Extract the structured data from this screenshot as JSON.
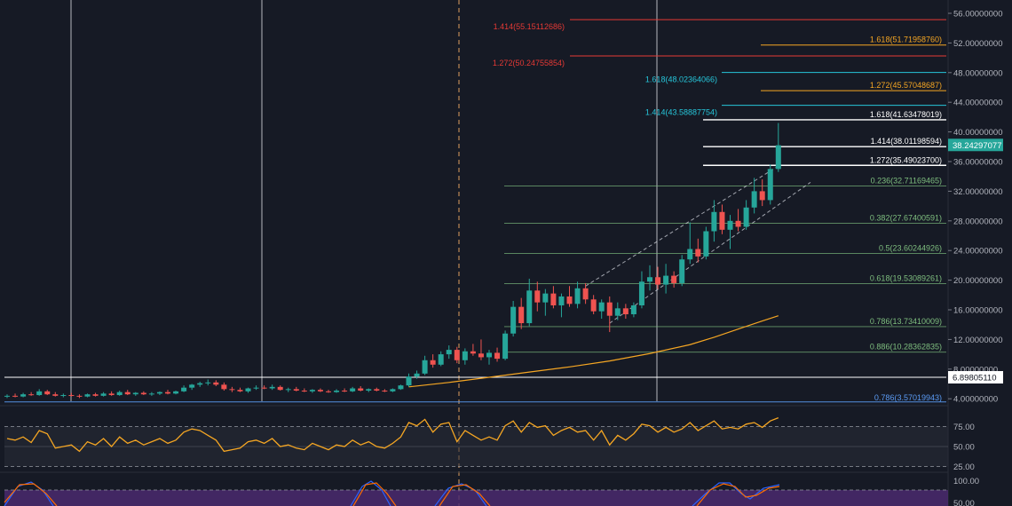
{
  "colors": {
    "background": "#161a25",
    "grid": "#262a35",
    "up": "#26a69a",
    "down": "#ef5350",
    "ma": "#f5a623",
    "rsi": "#f5a623",
    "stoch_k": "#2962ff",
    "stoch_d": "#ff6d00",
    "fib": "#7fbf7f",
    "red_level": "#e53935",
    "orange_level": "#f5a623",
    "cyan_level": "#26c6da",
    "white_level": "#ffffff",
    "blue_level": "#5b9cf6"
  },
  "price_axis": {
    "labels": [
      "56.00000000",
      "52.00000000",
      "48.00000000",
      "44.00000000",
      "40.00000000",
      "36.00000000",
      "32.00000000",
      "28.00000000",
      "24.00000000",
      "20.00000000",
      "16.00000000",
      "12.00000000",
      "8.00000000",
      "4.00000000"
    ],
    "values": [
      56,
      52,
      48,
      44,
      40,
      36,
      32,
      28,
      24,
      20,
      16,
      12,
      8,
      4
    ],
    "current_price_tag": "38.24297077",
    "current_price": 38.24297077,
    "support_tag": "6.89805110",
    "support_price": 6.8980511
  },
  "rsi_axis": {
    "labels": [
      "75.00",
      "50.00",
      "25.00"
    ],
    "values": [
      75,
      50,
      25
    ]
  },
  "stoch_axis": {
    "labels": [
      "100.00",
      "50.00"
    ],
    "values": [
      100,
      50
    ]
  },
  "fib_levels": [
    {
      "label": "0.236(32.71169465)",
      "price": 32.71169465
    },
    {
      "label": "0.382(27.67400591)",
      "price": 27.67400591
    },
    {
      "label": "0.5(23.60244926)",
      "price": 23.60244926
    },
    {
      "label": "0.618(19.53089261)",
      "price": 19.53089261
    },
    {
      "label": "0.786(13.73410009)",
      "price": 13.73410009
    },
    {
      "label": "0.886(10.28362835)",
      "price": 10.28362835
    }
  ],
  "extension_levels": [
    {
      "label": "1.414(55.15112686)",
      "price": 55.15112686,
      "color": "red"
    },
    {
      "label": "1.618(51.71958760)",
      "price": 51.7195876,
      "color": "orange"
    },
    {
      "label": "1.272(50.24755854)",
      "price": 50.24755854,
      "color": "red"
    },
    {
      "label": "1.618(48.02364066)",
      "price": 48.02364066,
      "color": "cyan"
    },
    {
      "label": "1.272(45.57048687)",
      "price": 45.57048687,
      "color": "orange"
    },
    {
      "label": "1.414(43.58887754)",
      "price": 43.58887754,
      "color": "cyan"
    },
    {
      "label": "1.618(41.63478019)",
      "price": 41.63478019,
      "color": "white"
    },
    {
      "label": "1.414(38.01198594)",
      "price": 38.01198594,
      "color": "white"
    },
    {
      "label": "1.272(35.49023700)",
      "price": 35.490237,
      "color": "white"
    }
  ],
  "bottom_level": {
    "label": "0.786(3.57019943)",
    "price": 3.57019943
  },
  "candles": [
    {
      "t": 0,
      "o": 4.3,
      "h": 4.6,
      "l": 4.1,
      "c": 4.4
    },
    {
      "t": 1,
      "o": 4.4,
      "h": 4.7,
      "l": 4.2,
      "c": 4.3
    },
    {
      "t": 2,
      "o": 4.3,
      "h": 4.8,
      "l": 4.2,
      "c": 4.6
    },
    {
      "t": 3,
      "o": 4.6,
      "h": 4.9,
      "l": 4.4,
      "c": 4.5
    },
    {
      "t": 4,
      "o": 4.5,
      "h": 5.3,
      "l": 4.4,
      "c": 5.0
    },
    {
      "t": 5,
      "o": 5.0,
      "h": 5.2,
      "l": 4.5,
      "c": 4.6
    },
    {
      "t": 6,
      "o": 4.6,
      "h": 4.9,
      "l": 4.3,
      "c": 4.4
    },
    {
      "t": 7,
      "o": 4.4,
      "h": 4.7,
      "l": 4.2,
      "c": 4.5
    },
    {
      "t": 8,
      "o": 4.5,
      "h": 4.8,
      "l": 4.3,
      "c": 4.4
    },
    {
      "t": 9,
      "o": 4.4,
      "h": 4.6,
      "l": 4.1,
      "c": 4.3
    },
    {
      "t": 10,
      "o": 4.3,
      "h": 4.7,
      "l": 4.2,
      "c": 4.6
    },
    {
      "t": 11,
      "o": 4.6,
      "h": 4.8,
      "l": 4.3,
      "c": 4.4
    },
    {
      "t": 12,
      "o": 4.4,
      "h": 4.9,
      "l": 4.3,
      "c": 4.7
    },
    {
      "t": 13,
      "o": 4.7,
      "h": 5.0,
      "l": 4.4,
      "c": 4.5
    },
    {
      "t": 14,
      "o": 4.5,
      "h": 5.1,
      "l": 4.4,
      "c": 4.9
    },
    {
      "t": 15,
      "o": 4.9,
      "h": 5.2,
      "l": 4.5,
      "c": 4.6
    },
    {
      "t": 16,
      "o": 4.6,
      "h": 4.9,
      "l": 4.4,
      "c": 4.8
    },
    {
      "t": 17,
      "o": 4.8,
      "h": 5.0,
      "l": 4.5,
      "c": 4.6
    },
    {
      "t": 18,
      "o": 4.6,
      "h": 4.9,
      "l": 4.4,
      "c": 4.7
    },
    {
      "t": 19,
      "o": 4.7,
      "h": 5.0,
      "l": 4.5,
      "c": 4.9
    },
    {
      "t": 20,
      "o": 4.9,
      "h": 5.2,
      "l": 4.6,
      "c": 4.7
    },
    {
      "t": 21,
      "o": 4.7,
      "h": 5.1,
      "l": 4.6,
      "c": 5.0
    },
    {
      "t": 22,
      "o": 5.0,
      "h": 5.8,
      "l": 4.9,
      "c": 5.5
    },
    {
      "t": 23,
      "o": 5.5,
      "h": 6.0,
      "l": 5.2,
      "c": 5.9
    },
    {
      "t": 24,
      "o": 5.9,
      "h": 6.3,
      "l": 5.6,
      "c": 6.1
    },
    {
      "t": 25,
      "o": 6.1,
      "h": 6.6,
      "l": 5.8,
      "c": 6.2
    },
    {
      "t": 26,
      "o": 6.2,
      "h": 6.5,
      "l": 5.7,
      "c": 5.9
    },
    {
      "t": 27,
      "o": 5.9,
      "h": 6.2,
      "l": 5.1,
      "c": 5.3
    },
    {
      "t": 28,
      "o": 5.3,
      "h": 5.6,
      "l": 4.9,
      "c": 5.2
    },
    {
      "t": 29,
      "o": 5.2,
      "h": 5.5,
      "l": 4.9,
      "c": 5.0
    },
    {
      "t": 30,
      "o": 5.0,
      "h": 5.5,
      "l": 4.8,
      "c": 5.4
    },
    {
      "t": 31,
      "o": 5.4,
      "h": 5.8,
      "l": 5.2,
      "c": 5.5
    },
    {
      "t": 32,
      "o": 5.5,
      "h": 5.8,
      "l": 5.3,
      "c": 5.4
    },
    {
      "t": 33,
      "o": 5.4,
      "h": 5.9,
      "l": 5.2,
      "c": 5.6
    },
    {
      "t": 34,
      "o": 5.6,
      "h": 5.8,
      "l": 5.1,
      "c": 5.2
    },
    {
      "t": 35,
      "o": 5.2,
      "h": 5.5,
      "l": 4.9,
      "c": 5.3
    },
    {
      "t": 36,
      "o": 5.3,
      "h": 5.6,
      "l": 5.0,
      "c": 5.1
    },
    {
      "t": 37,
      "o": 5.1,
      "h": 5.4,
      "l": 4.9,
      "c": 5.0
    },
    {
      "t": 38,
      "o": 5.0,
      "h": 5.3,
      "l": 4.8,
      "c": 5.2
    },
    {
      "t": 39,
      "o": 5.2,
      "h": 5.4,
      "l": 4.9,
      "c": 5.0
    },
    {
      "t": 40,
      "o": 5.0,
      "h": 5.2,
      "l": 4.8,
      "c": 4.9
    },
    {
      "t": 41,
      "o": 4.9,
      "h": 5.3,
      "l": 4.8,
      "c": 5.1
    },
    {
      "t": 42,
      "o": 5.1,
      "h": 5.4,
      "l": 4.9,
      "c": 5.0
    },
    {
      "t": 43,
      "o": 5.0,
      "h": 5.6,
      "l": 4.9,
      "c": 5.4
    },
    {
      "t": 44,
      "o": 5.4,
      "h": 5.7,
      "l": 5.0,
      "c": 5.1
    },
    {
      "t": 45,
      "o": 5.1,
      "h": 5.4,
      "l": 4.9,
      "c": 5.3
    },
    {
      "t": 46,
      "o": 5.3,
      "h": 5.5,
      "l": 5.0,
      "c": 5.1
    },
    {
      "t": 47,
      "o": 5.1,
      "h": 5.3,
      "l": 4.9,
      "c": 5.0
    },
    {
      "t": 48,
      "o": 5.0,
      "h": 5.4,
      "l": 4.9,
      "c": 5.3
    },
    {
      "t": 49,
      "o": 5.3,
      "h": 5.9,
      "l": 5.2,
      "c": 5.8
    },
    {
      "t": 50,
      "o": 5.8,
      "h": 7.4,
      "l": 5.6,
      "c": 7.0
    },
    {
      "t": 51,
      "o": 7.0,
      "h": 7.8,
      "l": 6.7,
      "c": 7.4
    },
    {
      "t": 52,
      "o": 7.4,
      "h": 9.8,
      "l": 7.2,
      "c": 9.2
    },
    {
      "t": 53,
      "o": 9.2,
      "h": 10.0,
      "l": 8.2,
      "c": 8.6
    },
    {
      "t": 54,
      "o": 8.6,
      "h": 10.4,
      "l": 8.4,
      "c": 10.0
    },
    {
      "t": 55,
      "o": 10.0,
      "h": 11.2,
      "l": 9.4,
      "c": 10.6
    },
    {
      "t": 56,
      "o": 10.6,
      "h": 11.0,
      "l": 8.8,
      "c": 9.2
    },
    {
      "t": 57,
      "o": 9.2,
      "h": 10.8,
      "l": 8.6,
      "c": 10.4
    },
    {
      "t": 58,
      "o": 10.4,
      "h": 11.4,
      "l": 9.8,
      "c": 10.1
    },
    {
      "t": 59,
      "o": 10.1,
      "h": 12.0,
      "l": 9.2,
      "c": 9.6
    },
    {
      "t": 60,
      "o": 9.6,
      "h": 10.6,
      "l": 8.6,
      "c": 10.2
    },
    {
      "t": 61,
      "o": 10.2,
      "h": 10.9,
      "l": 9.0,
      "c": 9.4
    },
    {
      "t": 62,
      "o": 9.4,
      "h": 13.2,
      "l": 9.2,
      "c": 12.8
    },
    {
      "t": 63,
      "o": 12.8,
      "h": 17.2,
      "l": 12.4,
      "c": 16.4
    },
    {
      "t": 64,
      "o": 16.4,
      "h": 17.6,
      "l": 13.4,
      "c": 14.2
    },
    {
      "t": 65,
      "o": 14.2,
      "h": 20.2,
      "l": 13.8,
      "c": 18.6
    },
    {
      "t": 66,
      "o": 18.6,
      "h": 19.8,
      "l": 15.8,
      "c": 17.0
    },
    {
      "t": 67,
      "o": 17.0,
      "h": 18.8,
      "l": 15.2,
      "c": 18.2
    },
    {
      "t": 68,
      "o": 18.2,
      "h": 19.2,
      "l": 16.2,
      "c": 16.6
    },
    {
      "t": 69,
      "o": 16.6,
      "h": 18.2,
      "l": 15.0,
      "c": 17.8
    },
    {
      "t": 70,
      "o": 17.8,
      "h": 19.2,
      "l": 16.4,
      "c": 16.8
    },
    {
      "t": 71,
      "o": 16.8,
      "h": 19.8,
      "l": 16.2,
      "c": 18.9
    },
    {
      "t": 72,
      "o": 18.9,
      "h": 19.6,
      "l": 16.8,
      "c": 17.4
    },
    {
      "t": 73,
      "o": 17.4,
      "h": 18.0,
      "l": 15.4,
      "c": 15.8
    },
    {
      "t": 74,
      "o": 15.8,
      "h": 17.4,
      "l": 14.8,
      "c": 17.0
    },
    {
      "t": 75,
      "o": 17.0,
      "h": 17.8,
      "l": 13.0,
      "c": 15.2
    },
    {
      "t": 76,
      "o": 15.2,
      "h": 17.0,
      "l": 14.6,
      "c": 16.2
    },
    {
      "t": 77,
      "o": 16.2,
      "h": 16.8,
      "l": 14.8,
      "c": 15.4
    },
    {
      "t": 78,
      "o": 15.4,
      "h": 17.0,
      "l": 15.0,
      "c": 16.6
    },
    {
      "t": 79,
      "o": 16.6,
      "h": 21.2,
      "l": 16.2,
      "c": 19.8
    },
    {
      "t": 80,
      "o": 19.8,
      "h": 22.0,
      "l": 18.6,
      "c": 20.4
    },
    {
      "t": 81,
      "o": 20.4,
      "h": 21.8,
      "l": 18.8,
      "c": 19.4
    },
    {
      "t": 82,
      "o": 19.4,
      "h": 22.2,
      "l": 18.2,
      "c": 20.6
    },
    {
      "t": 83,
      "o": 20.6,
      "h": 21.2,
      "l": 19.0,
      "c": 19.6
    },
    {
      "t": 84,
      "o": 19.6,
      "h": 23.4,
      "l": 19.2,
      "c": 22.8
    },
    {
      "t": 85,
      "o": 22.8,
      "h": 27.8,
      "l": 22.2,
      "c": 24.2
    },
    {
      "t": 86,
      "o": 24.2,
      "h": 25.6,
      "l": 22.4,
      "c": 23.2
    },
    {
      "t": 87,
      "o": 23.2,
      "h": 27.2,
      "l": 22.8,
      "c": 26.6
    },
    {
      "t": 88,
      "o": 26.6,
      "h": 30.8,
      "l": 25.2,
      "c": 29.2
    },
    {
      "t": 89,
      "o": 29.2,
      "h": 30.2,
      "l": 26.2,
      "c": 26.8
    },
    {
      "t": 90,
      "o": 26.8,
      "h": 28.8,
      "l": 24.2,
      "c": 28.0
    },
    {
      "t": 91,
      "o": 28.0,
      "h": 29.6,
      "l": 26.6,
      "c": 27.2
    },
    {
      "t": 92,
      "o": 27.2,
      "h": 30.8,
      "l": 26.8,
      "c": 29.8
    },
    {
      "t": 93,
      "o": 29.8,
      "h": 33.8,
      "l": 29.0,
      "c": 32.0
    },
    {
      "t": 94,
      "o": 32.0,
      "h": 33.6,
      "l": 30.0,
      "c": 30.8
    },
    {
      "t": 95,
      "o": 30.8,
      "h": 35.6,
      "l": 30.2,
      "c": 35.0
    },
    {
      "t": 96,
      "o": 35.0,
      "h": 41.2,
      "l": 34.6,
      "c": 38.2
    }
  ],
  "moving_average": [
    [
      50,
      5.6
    ],
    [
      55,
      6.2
    ],
    [
      60,
      6.9
    ],
    [
      65,
      7.6
    ],
    [
      70,
      8.3
    ],
    [
      75,
      9.1
    ],
    [
      80,
      10.1
    ],
    [
      85,
      11.3
    ],
    [
      88,
      12.3
    ],
    [
      91,
      13.4
    ],
    [
      94,
      14.5
    ],
    [
      96,
      15.2
    ]
  ],
  "rsi": [
    60,
    58,
    62,
    55,
    70,
    66,
    48,
    50,
    52,
    44,
    56,
    52,
    60,
    50,
    62,
    54,
    58,
    52,
    56,
    60,
    54,
    58,
    68,
    72,
    70,
    64,
    58,
    44,
    46,
    48,
    56,
    58,
    54,
    60,
    50,
    52,
    48,
    46,
    54,
    50,
    46,
    52,
    50,
    58,
    52,
    56,
    50,
    48,
    54,
    62,
    80,
    76,
    84,
    68,
    78,
    80,
    56,
    70,
    64,
    58,
    62,
    58,
    76,
    82,
    68,
    80,
    74,
    76,
    64,
    70,
    74,
    68,
    70,
    58,
    70,
    52,
    64,
    58,
    66,
    78,
    76,
    68,
    74,
    68,
    72,
    80,
    70,
    76,
    82,
    72,
    74,
    72,
    78,
    80,
    74,
    82,
    86
  ]
}
